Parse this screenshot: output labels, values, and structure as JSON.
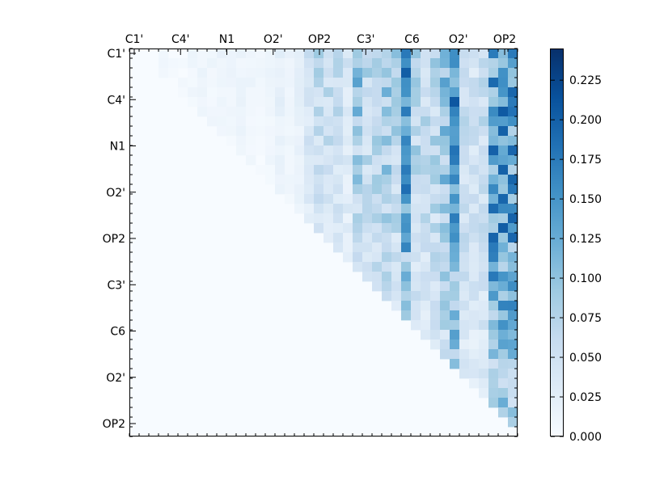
{
  "chart_data": {
    "type": "heatmap",
    "colormap": "Blues",
    "grid": false,
    "legend_position": "right",
    "x_tick_labels": [
      "C1'",
      "C4'",
      "N1",
      "O2'",
      "OP2",
      "C3'",
      "C6",
      "O2'",
      "OP2"
    ],
    "y_tick_labels": [
      "C1'",
      "C4'",
      "N1",
      "O2'",
      "OP2",
      "C3'",
      "C6",
      "O2'",
      "OP2"
    ],
    "colorbar": {
      "range": [
        0.0,
        0.245
      ],
      "ticks": [
        "0.000",
        "0.025",
        "0.050",
        "0.075",
        "0.100",
        "0.125",
        "0.150",
        "0.175",
        "0.200",
        "0.225"
      ],
      "tick_values": [
        0.0,
        0.025,
        0.05,
        0.075,
        0.1,
        0.125,
        0.15,
        0.175,
        0.2,
        0.225
      ]
    },
    "n": 40,
    "zero_lower_triangle": true,
    "column_peaks": [
      0,
      0,
      0.015,
      0.025,
      0.01,
      0.015,
      0.02,
      0.025,
      0.02,
      0.025,
      0.02,
      0.025,
      0.02,
      0.015,
      0.02,
      0.04,
      0.02,
      0.03,
      0.075,
      0.1,
      0.1,
      0.09,
      0.06,
      0.14,
      0.1,
      0.12,
      0.13,
      0.11,
      0.225,
      0.1,
      0.09,
      0.1,
      0.14,
      0.215,
      0.08,
      0.07,
      0.08,
      0.2,
      0.21,
      0.2
    ]
  }
}
